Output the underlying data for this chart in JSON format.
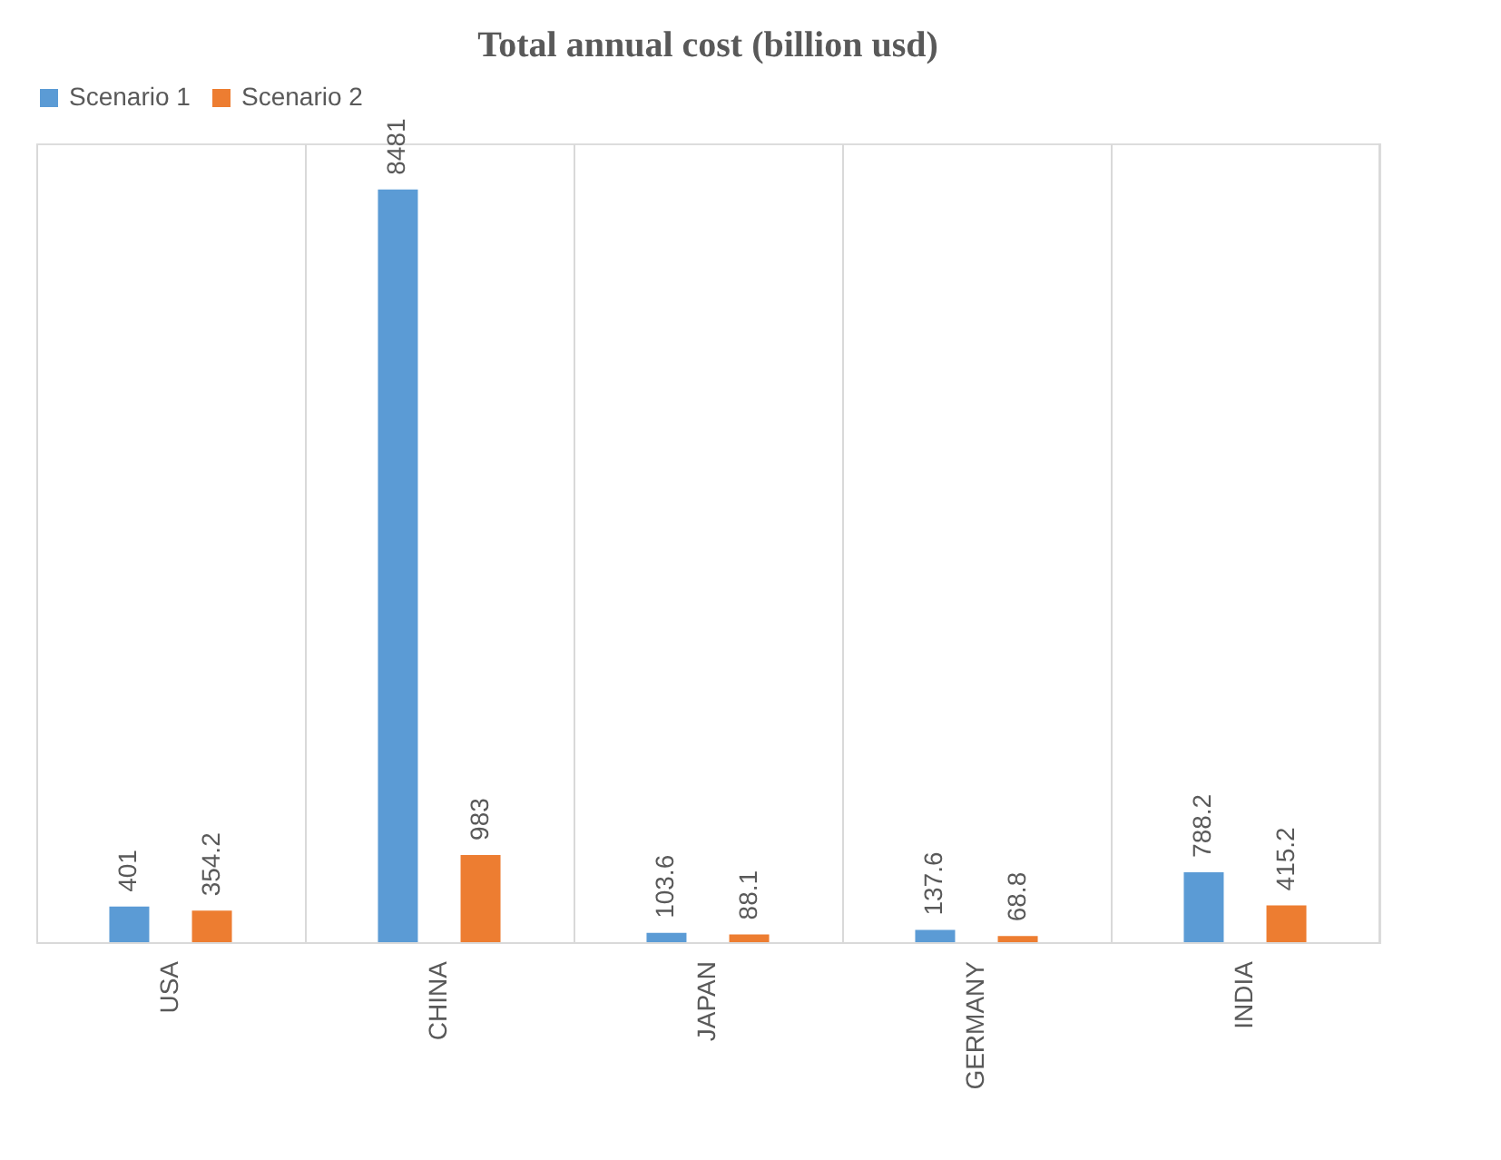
{
  "chart_data": {
    "type": "bar",
    "title": "Total annual cost (billion usd)",
    "categories": [
      "USA",
      "CHINA",
      "JAPAN",
      "GERMANY",
      "INDIA"
    ],
    "series": [
      {
        "name": "Scenario 1",
        "color": "#5b9bd5",
        "values": [
          401,
          8481,
          103.6,
          137.6,
          788.2
        ]
      },
      {
        "name": "Scenario 2",
        "color": "#ed7d31",
        "values": [
          354.2,
          983,
          88.1,
          68.8,
          415.2
        ]
      }
    ],
    "data_labels": true,
    "legend": "top",
    "grid": "x"
  }
}
